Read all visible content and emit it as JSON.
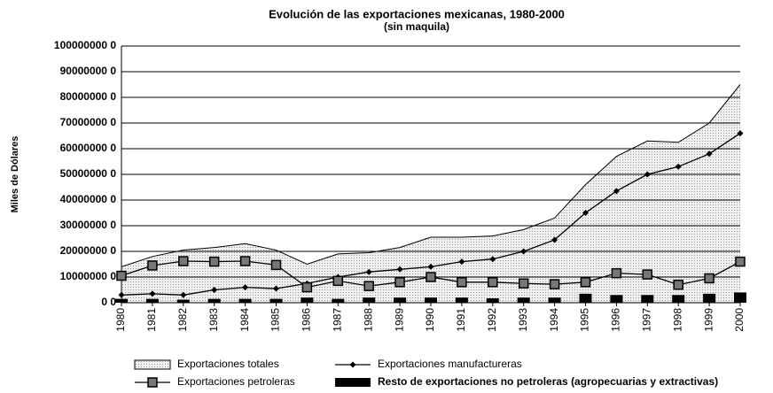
{
  "chart_data": {
    "type": "line",
    "title": "Evolución de las exportaciones mexicanas, 1980-2000",
    "subtitle": "(sin maquila)",
    "y_label": "Miles de Dólares",
    "categories": [
      "1980",
      "1981",
      "1982",
      "1983",
      "1984",
      "1985",
      "1986",
      "1987",
      "1988",
      "1989",
      "1990",
      "1991",
      "1992",
      "1993",
      "1994",
      "1995",
      "1996",
      "1997",
      "1998",
      "1999",
      "2000"
    ],
    "ylim": [
      0,
      1000000000
    ],
    "yticks": [
      {
        "value": 0,
        "label": "0 0"
      },
      {
        "value": 100000000,
        "label": "10000000 0"
      },
      {
        "value": 200000000,
        "label": "20000000 0"
      },
      {
        "value": 300000000,
        "label": "30000000 0"
      },
      {
        "value": 400000000,
        "label": "40000000 0"
      },
      {
        "value": 500000000,
        "label": "50000000 0"
      },
      {
        "value": 600000000,
        "label": "60000000 0"
      },
      {
        "value": 700000000,
        "label": "70000000 0"
      },
      {
        "value": 800000000,
        "label": "80000000 0"
      },
      {
        "value": 900000000,
        "label": "90000000 0"
      },
      {
        "value": 1000000000,
        "label": "100000000 0"
      }
    ],
    "grid": true,
    "series": [
      {
        "name": "Exportaciones totales",
        "type": "area",
        "color": "#e2e2e2",
        "values": [
          140000000,
          180000000,
          205000000,
          215000000,
          230000000,
          205000000,
          150000000,
          190000000,
          195000000,
          215000000,
          255000000,
          255000000,
          260000000,
          285000000,
          330000000,
          460000000,
          570000000,
          630000000,
          625000000,
          700000000,
          850000000
        ]
      },
      {
        "name": "Exportaciones manufactureras",
        "type": "line",
        "color": "#000000",
        "values": [
          30000000,
          35000000,
          30000000,
          50000000,
          60000000,
          55000000,
          75000000,
          100000000,
          120000000,
          130000000,
          140000000,
          160000000,
          170000000,
          200000000,
          245000000,
          350000000,
          435000000,
          500000000,
          530000000,
          580000000,
          660000000
        ]
      },
      {
        "name": "Exportaciones petroleras",
        "type": "line",
        "color": "#000000",
        "values": [
          105000000,
          145000000,
          162000000,
          160000000,
          162000000,
          147000000,
          60000000,
          85000000,
          65000000,
          80000000,
          100000000,
          80000000,
          80000000,
          75000000,
          72000000,
          80000000,
          115000000,
          110000000,
          70000000,
          95000000,
          160000000
        ]
      },
      {
        "name": "Resto de exportaciones no petroleras (agropecuarias y extractivas)",
        "type": "bar",
        "color": "#000000",
        "values": [
          15000000,
          15000000,
          12000000,
          15000000,
          15000000,
          15000000,
          20000000,
          15000000,
          20000000,
          20000000,
          20000000,
          20000000,
          17000000,
          20000000,
          20000000,
          35000000,
          30000000,
          30000000,
          30000000,
          35000000,
          40000000
        ]
      }
    ]
  }
}
